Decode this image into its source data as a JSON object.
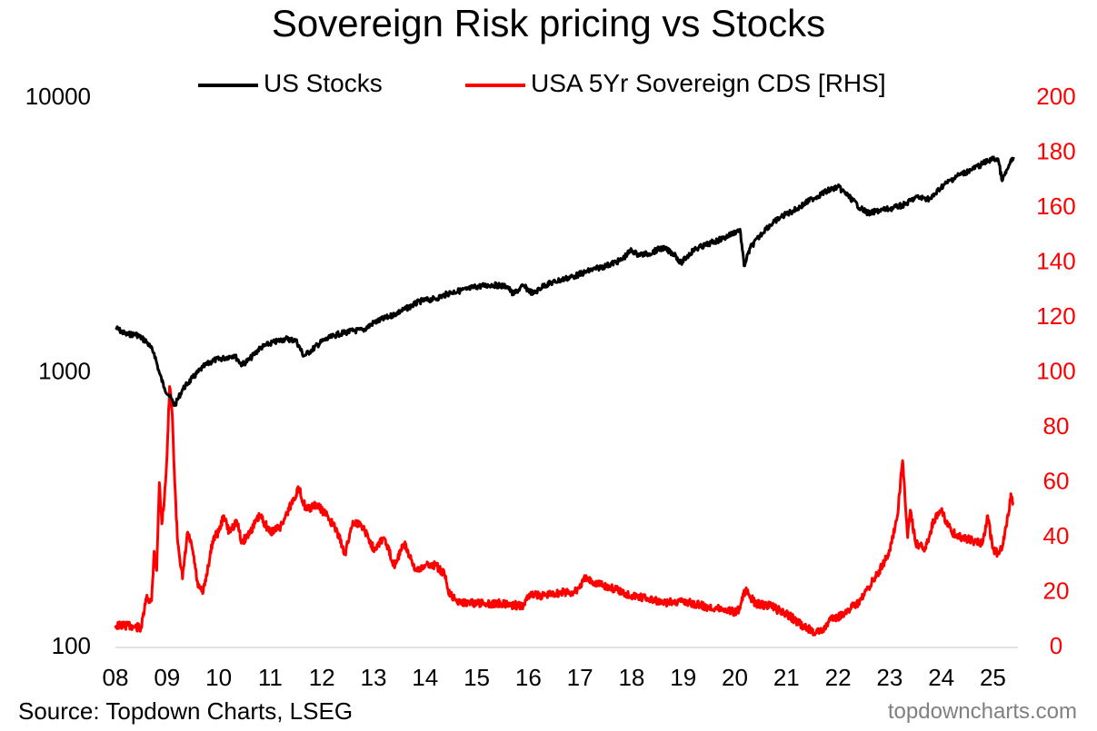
{
  "chart_data": {
    "type": "line",
    "title": "Sovereign Risk pricing vs Stocks",
    "x_tick_labels": [
      "08",
      "09",
      "10",
      "11",
      "12",
      "13",
      "14",
      "15",
      "16",
      "17",
      "18",
      "19",
      "20",
      "21",
      "22",
      "23",
      "24",
      "25"
    ],
    "xlim": [
      2008.0,
      2025.45
    ],
    "y_left": {
      "scale": "log",
      "ylim": [
        100,
        10000
      ],
      "tick_labels": [
        "100",
        "1000",
        "10000"
      ]
    },
    "y_right": {
      "scale": "linear",
      "ylim": [
        0,
        200
      ],
      "tick_labels": [
        "0",
        "20",
        "40",
        "60",
        "80",
        "100",
        "120",
        "140",
        "160",
        "180",
        "200"
      ],
      "color": "#ff0000"
    },
    "legend_position": "top-center",
    "series": [
      {
        "name": "US Stocks",
        "axis": "left",
        "color": "#000000",
        "x": [
          2008.0,
          2008.2,
          2008.4,
          2008.6,
          2008.75,
          2008.85,
          2008.95,
          2009.05,
          2009.15,
          2009.3,
          2009.5,
          2009.7,
          2009.9,
          2010.1,
          2010.3,
          2010.45,
          2010.6,
          2010.8,
          2011.0,
          2011.3,
          2011.5,
          2011.65,
          2011.8,
          2012.0,
          2012.3,
          2012.6,
          2012.8,
          2013.0,
          2013.3,
          2013.6,
          2013.9,
          2014.2,
          2014.5,
          2014.8,
          2015.0,
          2015.3,
          2015.6,
          2015.7,
          2015.9,
          2016.1,
          2016.3,
          2016.6,
          2016.9,
          2017.2,
          2017.5,
          2017.8,
          2018.0,
          2018.1,
          2018.3,
          2018.6,
          2018.85,
          2018.95,
          2019.2,
          2019.5,
          2019.8,
          2020.0,
          2020.1,
          2020.18,
          2020.3,
          2020.6,
          2020.9,
          2021.2,
          2021.5,
          2021.8,
          2022.0,
          2022.2,
          2022.45,
          2022.6,
          2022.8,
          2023.0,
          2023.3,
          2023.5,
          2023.8,
          2024.0,
          2024.3,
          2024.6,
          2024.9,
          2025.0,
          2025.1,
          2025.18,
          2025.3,
          2025.4
        ],
        "values": [
          1460,
          1380,
          1380,
          1300,
          1180,
          1000,
          880,
          820,
          760,
          870,
          960,
          1050,
          1110,
          1130,
          1160,
          1070,
          1120,
          1230,
          1280,
          1330,
          1310,
          1150,
          1210,
          1300,
          1380,
          1420,
          1430,
          1520,
          1600,
          1700,
          1820,
          1860,
          1960,
          2010,
          2060,
          2090,
          2060,
          1930,
          2070,
          1940,
          2080,
          2170,
          2250,
          2360,
          2450,
          2570,
          2800,
          2700,
          2700,
          2850,
          2690,
          2500,
          2800,
          2950,
          3100,
          3250,
          3330,
          2450,
          2850,
          3350,
          3700,
          3950,
          4300,
          4600,
          4750,
          4400,
          3950,
          3800,
          3900,
          3950,
          4100,
          4350,
          4300,
          4750,
          5200,
          5500,
          5900,
          6000,
          6000,
          5000,
          5600,
          6100
        ]
      },
      {
        "name": "USA 5Yr Sovereign CDS [RHS]",
        "axis": "right",
        "color": "#ff0000",
        "x": [
          2008.0,
          2008.25,
          2008.5,
          2008.6,
          2008.7,
          2008.75,
          2008.8,
          2008.85,
          2008.9,
          2008.95,
          2009.0,
          2009.05,
          2009.1,
          2009.15,
          2009.2,
          2009.3,
          2009.4,
          2009.5,
          2009.6,
          2009.7,
          2009.8,
          2009.9,
          2010.0,
          2010.1,
          2010.2,
          2010.35,
          2010.45,
          2010.6,
          2010.8,
          2011.0,
          2011.2,
          2011.4,
          2011.55,
          2011.7,
          2011.9,
          2012.1,
          2012.3,
          2012.45,
          2012.6,
          2012.8,
          2013.0,
          2013.2,
          2013.4,
          2013.6,
          2013.8,
          2014.0,
          2014.2,
          2014.4,
          2014.45,
          2014.6,
          2015.0,
          2015.5,
          2015.9,
          2016.0,
          2016.3,
          2016.6,
          2016.9,
          2017.1,
          2017.4,
          2017.7,
          2018.0,
          2018.3,
          2018.6,
          2019.0,
          2019.4,
          2019.8,
          2020.0,
          2020.1,
          2020.2,
          2020.4,
          2020.7,
          2020.9,
          2021.1,
          2021.3,
          2021.5,
          2021.7,
          2021.85,
          2022.0,
          2022.2,
          2022.4,
          2022.6,
          2022.8,
          2023.0,
          2023.15,
          2023.25,
          2023.35,
          2023.4,
          2023.5,
          2023.7,
          2023.85,
          2024.0,
          2024.2,
          2024.4,
          2024.6,
          2024.8,
          2024.9,
          2025.0,
          2025.1,
          2025.2,
          2025.25,
          2025.3,
          2025.35,
          2025.4
        ],
        "values": [
          8,
          8,
          7,
          18,
          17,
          35,
          28,
          60,
          45,
          55,
          70,
          95,
          85,
          60,
          40,
          25,
          42,
          35,
          22,
          20,
          30,
          40,
          42,
          48,
          42,
          46,
          38,
          42,
          48,
          42,
          44,
          52,
          58,
          50,
          52,
          48,
          42,
          34,
          46,
          44,
          36,
          40,
          30,
          38,
          28,
          30,
          30,
          26,
          20,
          17,
          16,
          16,
          15,
          19,
          19,
          20,
          20,
          25,
          23,
          21,
          19,
          18,
          16,
          17,
          15,
          14,
          13,
          14,
          21,
          16,
          15,
          13,
          11,
          8,
          6,
          6,
          10,
          11,
          14,
          16,
          22,
          28,
          35,
          48,
          68,
          40,
          50,
          38,
          36,
          46,
          50,
          42,
          40,
          39,
          38,
          48,
          36,
          34,
          38,
          44,
          48,
          56,
          52
        ]
      }
    ]
  },
  "source": "Source: Topdown Charts, LSEG",
  "credit": "topdowncharts.com"
}
